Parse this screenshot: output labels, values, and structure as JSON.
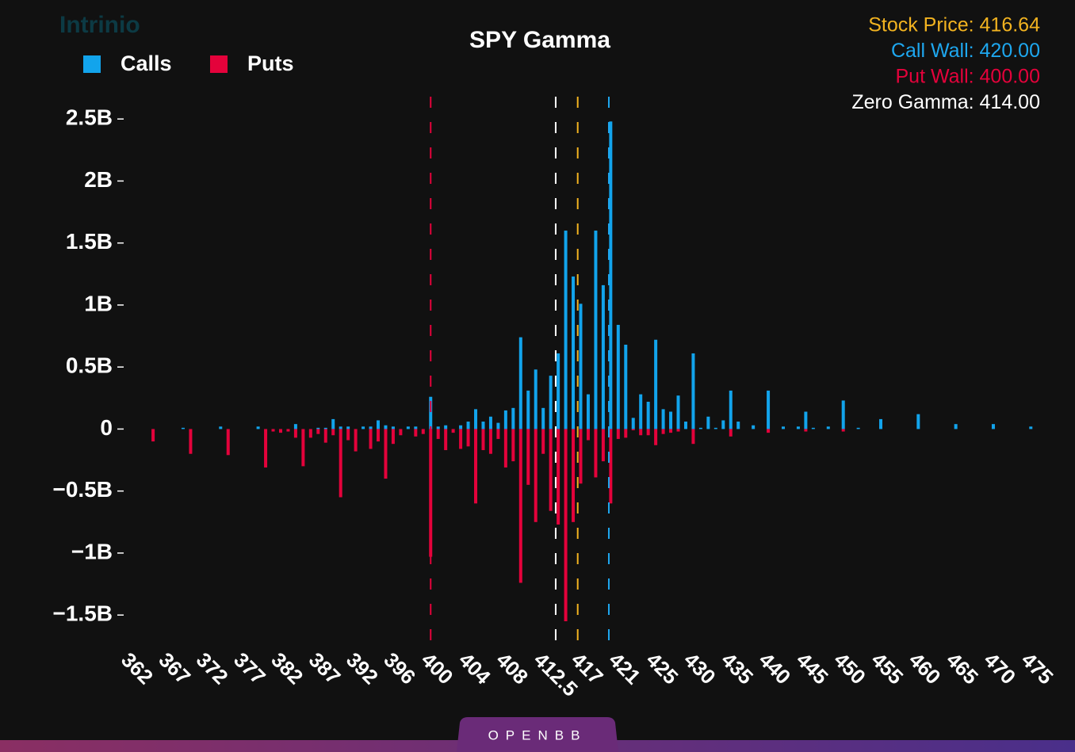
{
  "chart_data": {
    "type": "bar",
    "title": "SPY Gamma",
    "watermark": "Intrinio",
    "footer_logo": "OPENBB",
    "categories": [
      "362",
      null,
      null,
      null,
      null,
      "367",
      null,
      null,
      null,
      null,
      "372",
      null,
      null,
      null,
      null,
      "377",
      null,
      null,
      null,
      null,
      "382",
      null,
      null,
      null,
      null,
      "387",
      null,
      null,
      null,
      null,
      "392",
      null,
      null,
      null,
      null,
      "396",
      null,
      null,
      null,
      null,
      "400",
      null,
      null,
      null,
      null,
      "404",
      null,
      null,
      null,
      null,
      "408",
      null,
      null,
      null,
      null,
      "412.5",
      null,
      null,
      null,
      null,
      "417",
      null,
      null,
      null,
      null,
      "421",
      null,
      null,
      null,
      null,
      "425",
      null,
      null,
      null,
      null,
      "430",
      null,
      null,
      null,
      null,
      "435",
      null,
      null,
      null,
      null,
      "440",
      null,
      null,
      null,
      null,
      "445",
      null,
      null,
      null,
      null,
      "450",
      null,
      null,
      null,
      null,
      "455",
      null,
      null,
      null,
      null,
      "460",
      null,
      null,
      null,
      null,
      "465",
      null,
      null,
      null,
      null,
      "470",
      null,
      null,
      null,
      null,
      "475"
    ],
    "series": [
      {
        "name": "Calls",
        "color": "#12a4ec",
        "values": [
          0,
          0,
          0,
          0,
          0,
          0,
          0,
          0.01,
          0,
          0,
          0,
          0,
          0.02,
          0,
          0,
          0,
          0,
          0.02,
          0,
          0,
          0,
          0,
          0.04,
          0,
          0,
          0.01,
          0.01,
          0.08,
          0.02,
          0.02,
          0,
          0.02,
          0.02,
          0.07,
          0.03,
          0.02,
          0,
          0.02,
          0.02,
          0,
          0.26,
          0.02,
          0.03,
          0,
          0.03,
          0.06,
          0.16,
          0.06,
          0.1,
          0.05,
          0.15,
          0.17,
          0.74,
          0.31,
          0.48,
          0.17,
          0.43,
          0.61,
          1.6,
          1.23,
          1.01,
          0.28,
          1.6,
          1.16,
          2.48,
          0.84,
          0.68,
          0.09,
          0.28,
          0.22,
          0.72,
          0.16,
          0.14,
          0.27,
          0.06,
          0.61,
          0.01,
          0.1,
          0.01,
          0.07,
          0.31,
          0.06,
          0,
          0.03,
          0,
          0.31,
          0,
          0.02,
          0,
          0.02,
          0.14,
          0.01,
          0,
          0.02,
          0,
          0.23,
          0,
          0.01,
          0,
          0,
          0.08,
          0,
          0,
          0,
          0,
          0.12,
          0,
          0,
          0,
          0,
          0.04,
          0,
          0,
          0,
          0,
          0.04,
          0,
          0,
          0,
          0,
          0.02
        ]
      },
      {
        "name": "Puts",
        "color": "#e4023b",
        "values": [
          0,
          0,
          0,
          -0.1,
          0,
          0,
          0,
          0,
          -0.2,
          0,
          0,
          0,
          0,
          -0.21,
          0,
          0,
          0,
          0,
          -0.31,
          -0.02,
          -0.03,
          -0.02,
          -0.07,
          -0.3,
          -0.07,
          -0.04,
          -0.11,
          -0.05,
          -0.55,
          -0.09,
          -0.18,
          0,
          -0.16,
          -0.1,
          -0.4,
          -0.12,
          -0.05,
          0,
          -0.06,
          -0.04,
          -1.03,
          -0.08,
          -0.17,
          -0.03,
          -0.16,
          -0.14,
          -0.6,
          -0.17,
          -0.2,
          -0.08,
          -0.31,
          -0.26,
          -1.24,
          -0.45,
          -0.75,
          -0.2,
          -0.66,
          -0.77,
          -1.55,
          -0.75,
          -0.44,
          -0.09,
          -0.39,
          -0.26,
          -0.6,
          -0.08,
          -0.07,
          -0.01,
          -0.05,
          -0.05,
          -0.13,
          -0.04,
          -0.03,
          -0.02,
          0,
          -0.12,
          0,
          0,
          0,
          0,
          -0.06,
          0,
          0,
          0,
          0,
          -0.03,
          0,
          0,
          0,
          0,
          -0.02,
          0,
          0,
          0,
          0,
          -0.02,
          0,
          0,
          0,
          0,
          0,
          0,
          0,
          0,
          0,
          0,
          0,
          0,
          0,
          0,
          0,
          0,
          0,
          0,
          0,
          0,
          0,
          0,
          0,
          0,
          0
        ]
      }
    ],
    "ylim": [
      -1.78,
      2.68
    ],
    "yticks": [
      {
        "value": -1.5,
        "label": "−1.5B"
      },
      {
        "value": -1,
        "label": "−1B"
      },
      {
        "value": -0.5,
        "label": "−0.5B"
      },
      0,
      {
        "value": 0.5,
        "label": "0.5B"
      },
      {
        "value": 1,
        "label": "1B"
      },
      {
        "value": 1.5,
        "label": "1.5B"
      },
      {
        "value": 2,
        "label": "2B"
      },
      {
        "value": 2.5,
        "label": "2.5B"
      }
    ],
    "annotations": [
      {
        "label": "Stock Price: 416.64",
        "value": 416.64,
        "color": "#f2b320"
      },
      {
        "label": "Call Wall: 420.00",
        "value": 420,
        "color": "#1ea7ef"
      },
      {
        "label": "Put Wall: 400.00",
        "value": 400,
        "color": "#e4023b"
      },
      {
        "label": "Zero Gamma: 414.00",
        "value": 414,
        "color": "#ffffff"
      }
    ],
    "legend": "top-left"
  }
}
